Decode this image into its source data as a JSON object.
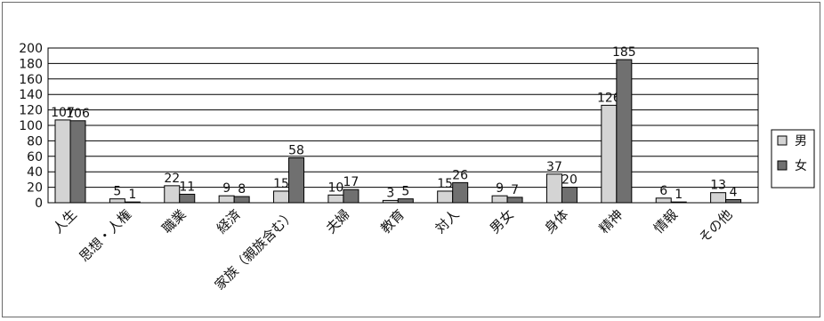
{
  "chart_data": {
    "type": "bar",
    "title": "",
    "xlabel": "",
    "ylabel": "",
    "ylim": [
      0,
      200
    ],
    "yticks": [
      0,
      20,
      40,
      60,
      80,
      100,
      120,
      140,
      160,
      180,
      200
    ],
    "grid": true,
    "legend_position": "right",
    "categories": [
      "人生",
      "思想・人権",
      "職業",
      "経済",
      "家族（親族含む）",
      "夫婦",
      "教育",
      "対人",
      "男女",
      "身体",
      "精神",
      "情報",
      "その他"
    ],
    "series": [
      {
        "name": "男",
        "color": "#d4d4d4",
        "values": [
          107,
          5,
          22,
          9,
          15,
          10,
          3,
          15,
          9,
          37,
          126,
          6,
          13
        ]
      },
      {
        "name": "女",
        "color": "#707070",
        "values": [
          106,
          1,
          11,
          8,
          58,
          17,
          5,
          26,
          7,
          20,
          185,
          1,
          4
        ]
      }
    ]
  }
}
